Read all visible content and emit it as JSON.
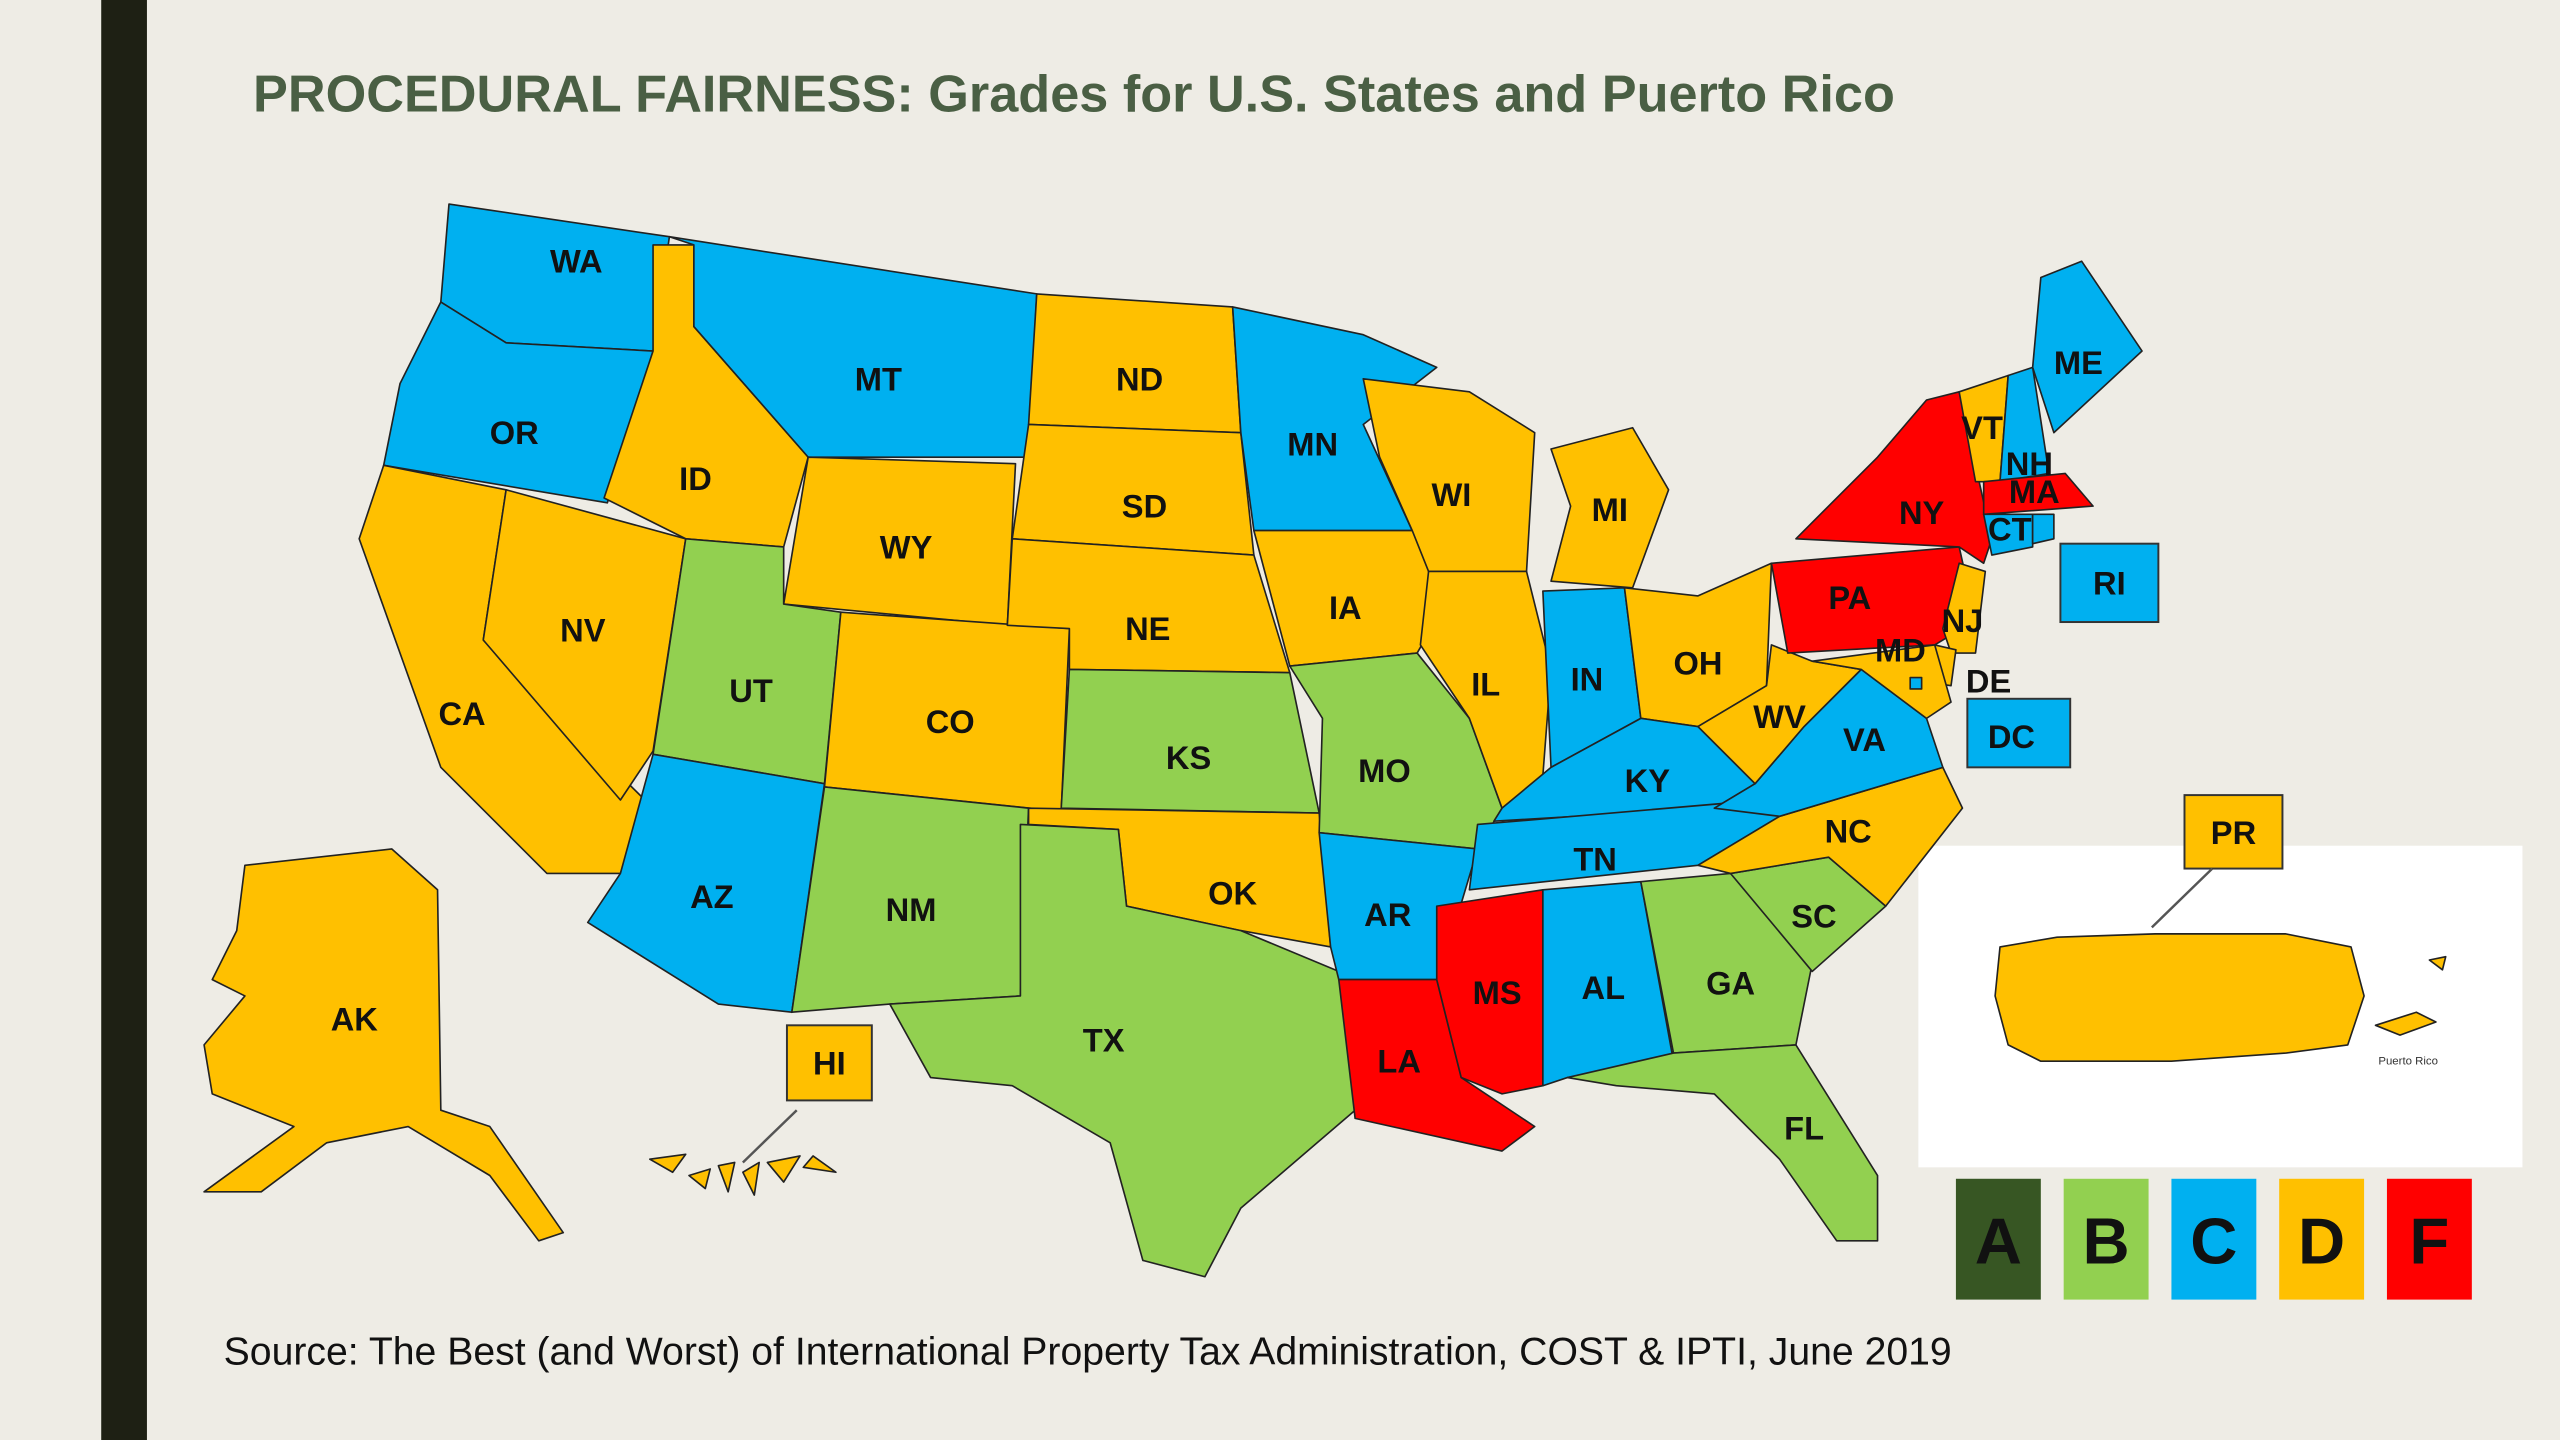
{
  "title": "PROCEDURAL FAIRNESS: Grades for U.S. States and Puerto Rico",
  "states": [
    {
      "label": "WA",
      "grade": "C"
    },
    {
      "label": "OR",
      "grade": "C"
    },
    {
      "label": "CA",
      "grade": "D"
    },
    {
      "label": "NV",
      "grade": "D"
    },
    {
      "label": "ID",
      "grade": "D"
    },
    {
      "label": "MT",
      "grade": "C"
    },
    {
      "label": "WY",
      "grade": "D"
    },
    {
      "label": "UT",
      "grade": "B"
    },
    {
      "label": "CO",
      "grade": "D"
    },
    {
      "label": "AZ",
      "grade": "C"
    },
    {
      "label": "NM",
      "grade": "B"
    },
    {
      "label": "ND",
      "grade": "D"
    },
    {
      "label": "SD",
      "grade": "D"
    },
    {
      "label": "NE",
      "grade": "D"
    },
    {
      "label": "KS",
      "grade": "B"
    },
    {
      "label": "OK",
      "grade": "D"
    },
    {
      "label": "TX",
      "grade": "B"
    },
    {
      "label": "MN",
      "grade": "C"
    },
    {
      "label": "IA",
      "grade": "D"
    },
    {
      "label": "MO",
      "grade": "B"
    },
    {
      "label": "AR",
      "grade": "C"
    },
    {
      "label": "LA",
      "grade": "F"
    },
    {
      "label": "WI",
      "grade": "D"
    },
    {
      "label": "IL",
      "grade": "D"
    },
    {
      "label": "MI",
      "grade": "D"
    },
    {
      "label": "IN",
      "grade": "C"
    },
    {
      "label": "OH",
      "grade": "D"
    },
    {
      "label": "KY",
      "grade": "C"
    },
    {
      "label": "TN",
      "grade": "C"
    },
    {
      "label": "MS",
      "grade": "F"
    },
    {
      "label": "AL",
      "grade": "C"
    },
    {
      "label": "GA",
      "grade": "B"
    },
    {
      "label": "FL",
      "grade": "B"
    },
    {
      "label": "SC",
      "grade": "B"
    },
    {
      "label": "NC",
      "grade": "D"
    },
    {
      "label": "VA",
      "grade": "C"
    },
    {
      "label": "WV",
      "grade": "D"
    },
    {
      "label": "PA",
      "grade": "F"
    },
    {
      "label": "NY",
      "grade": "F"
    },
    {
      "label": "VT",
      "grade": "D"
    },
    {
      "label": "NH",
      "grade": "C"
    },
    {
      "label": "ME",
      "grade": "C"
    },
    {
      "label": "MA",
      "grade": "F"
    },
    {
      "label": "CT",
      "grade": "C"
    },
    {
      "label": "RI",
      "grade": "C"
    },
    {
      "label": "NJ",
      "grade": "D"
    },
    {
      "label": "DE",
      "grade": "D"
    },
    {
      "label": "MD",
      "grade": "D"
    },
    {
      "label": "DC",
      "grade": "C"
    },
    {
      "label": "AK",
      "grade": "D"
    },
    {
      "label": "HI",
      "grade": "D"
    },
    {
      "label": "PR",
      "grade": "D"
    }
  ],
  "legend": [
    {
      "label": "A",
      "color": "#375623"
    },
    {
      "label": "B",
      "color": "#92d050"
    },
    {
      "label": "C",
      "color": "#00b0f0"
    },
    {
      "label": "D",
      "color": "#ffc000"
    },
    {
      "label": "F",
      "color": "#ff0000"
    }
  ],
  "inset_caption": "Puerto Rico",
  "source": "Source: The Best (and Worst) of International Property Tax Administration, COST & IPTI, June 2019"
}
